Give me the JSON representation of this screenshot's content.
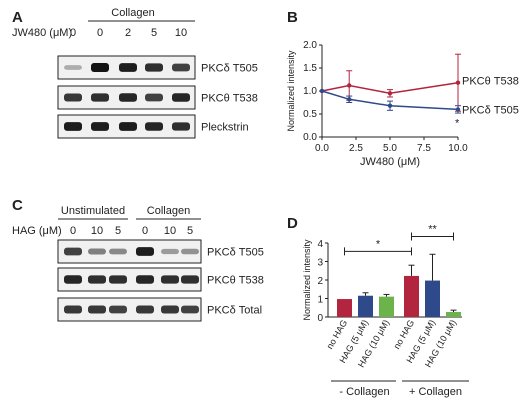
{
  "panels": {
    "A": {
      "letter": "A",
      "condition_label": "Collagen",
      "dose_label": "JW480 (μM)",
      "lanes": [
        "0",
        "0",
        "2",
        "5",
        "10"
      ],
      "blot_labels": [
        "PKCδ T505",
        "PKCθ T538",
        "Pleckstrin"
      ],
      "band_intensity": [
        [
          0.15,
          1.0,
          0.95,
          0.85,
          0.75
        ],
        [
          0.8,
          0.85,
          0.9,
          0.75,
          0.9
        ],
        [
          0.95,
          0.95,
          0.95,
          0.9,
          0.85
        ]
      ]
    },
    "B": {
      "letter": "B"
    },
    "C": {
      "letter": "C",
      "group_labels": [
        "Unstimulated",
        "Collagen"
      ],
      "dose_label": "HAG (μM)",
      "lanes": [
        "0",
        "10",
        "5",
        "0",
        "10",
        "5"
      ],
      "blot_labels": [
        "PKCδ T505",
        "PKCθ T538",
        "PKCδ Total"
      ],
      "band_intensity": [
        [
          0.75,
          0.4,
          0.35,
          0.95,
          0.25,
          0.3
        ],
        [
          0.9,
          0.85,
          0.85,
          0.9,
          0.85,
          0.85
        ],
        [
          0.8,
          0.8,
          0.75,
          0.8,
          0.8,
          0.75
        ]
      ]
    },
    "D": {
      "letter": "D",
      "group_labels": [
        "- Collagen",
        "+ Collagen"
      ],
      "sig": [
        "*",
        "**"
      ]
    }
  },
  "chart_data": [
    {
      "type": "line",
      "panel": "B",
      "x": [
        0,
        2,
        5,
        10
      ],
      "xticks": [
        "0.0",
        "2.5",
        "5.0",
        "7.5",
        "10.0"
      ],
      "yticks": [
        "0.0",
        "0.5",
        "1.0",
        "1.5",
        "2.0"
      ],
      "xlim": [
        0,
        10
      ],
      "ylim": [
        0,
        2
      ],
      "xlabel": "JW480 (μM)",
      "ylabel": "Normalized intensity",
      "series": [
        {
          "name": "PKCθ T538",
          "color": "#b3243f",
          "values": [
            1.0,
            1.12,
            0.95,
            1.18
          ],
          "errors": [
            0,
            0.32,
            0.08,
            0.62
          ]
        },
        {
          "name": "PKCδ T505",
          "color": "#2f4a8a",
          "values": [
            1.0,
            0.82,
            0.68,
            0.6
          ],
          "errors": [
            0,
            0.07,
            0.1,
            0.08
          ]
        }
      ],
      "annotations": [
        "*"
      ]
    },
    {
      "type": "bar",
      "panel": "D",
      "categories": [
        "no HAG",
        "HAG (5 μM)",
        "HAG (10 μM)",
        "no HAG",
        "HAG (5 μM)",
        "HAG (10 μM)"
      ],
      "values": [
        0.97,
        1.15,
        1.1,
        2.22,
        1.97,
        0.27
      ],
      "errors": [
        0,
        0.16,
        0.12,
        0.58,
        1.42,
        0.1
      ],
      "colors": [
        "#b3243f",
        "#2f4a8a",
        "#6bb34a",
        "#b3243f",
        "#2f4a8a",
        "#6bb34a"
      ],
      "yticks": [
        "0",
        "1",
        "2",
        "3",
        "4"
      ],
      "ylim": [
        0,
        4
      ],
      "ylabel": "Normalized intensity"
    }
  ]
}
